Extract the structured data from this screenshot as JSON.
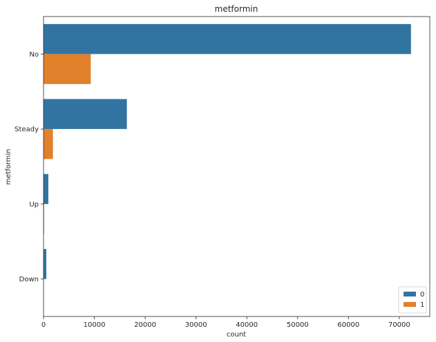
{
  "chart_data": {
    "type": "bar",
    "orientation": "horizontal",
    "title": "metformin",
    "xlabel": "count",
    "ylabel": "metformin",
    "categories": [
      "No",
      "Steady",
      "Up",
      "Down"
    ],
    "series": [
      {
        "name": "0",
        "color": "#3274a1",
        "values": [
          72300,
          16400,
          950,
          550
        ]
      },
      {
        "name": "1",
        "color": "#e1812c",
        "values": [
          9300,
          1850,
          110,
          30
        ]
      }
    ],
    "xlim": [
      0,
      76000
    ],
    "xticks": [
      0,
      10000,
      20000,
      30000,
      40000,
      50000,
      60000,
      70000
    ],
    "xtick_labels": [
      "0",
      "10000",
      "20000",
      "30000",
      "40000",
      "50000",
      "60000",
      "70000"
    ],
    "grid": false,
    "legend_position": "lower-right"
  }
}
